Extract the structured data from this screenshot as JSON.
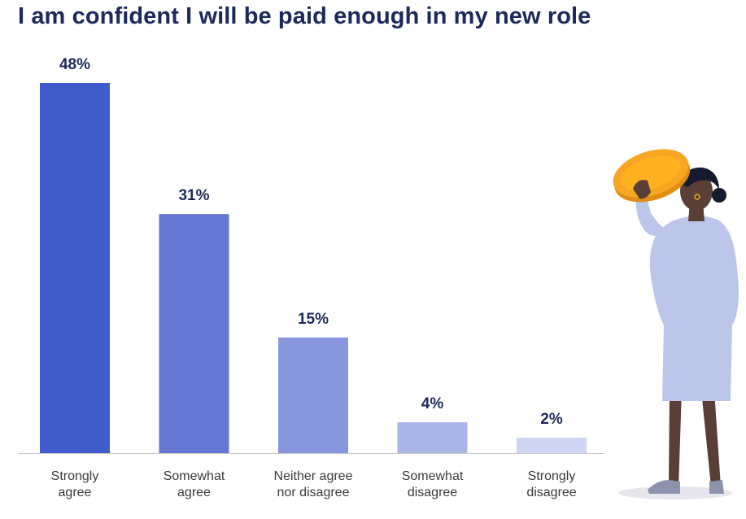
{
  "chart_data": {
    "type": "bar",
    "title": "I am confident I will be paid enough in my new role",
    "categories": [
      [
        "Strongly",
        "agree"
      ],
      [
        "Somewhat",
        "agree"
      ],
      [
        "Neither agree",
        "nor disagree"
      ],
      [
        "Somewhat",
        "disagree"
      ],
      [
        "Strongly",
        "disagree"
      ]
    ],
    "values": [
      48,
      31,
      15,
      4,
      2
    ],
    "value_labels": [
      "48%",
      "31%",
      "15%",
      "4%",
      "2%"
    ],
    "colors": [
      "#415bcb",
      "#6478d3",
      "#8796dd",
      "#aab5e8",
      "#cfd5f2"
    ],
    "ylim": [
      0,
      48
    ],
    "grid": false
  },
  "illustration": {
    "icon": "woman-holding-coin-icon",
    "coin_color": "#f6a623",
    "dress_color": "#bcc6ea",
    "skin_color": "#5a3f36"
  }
}
